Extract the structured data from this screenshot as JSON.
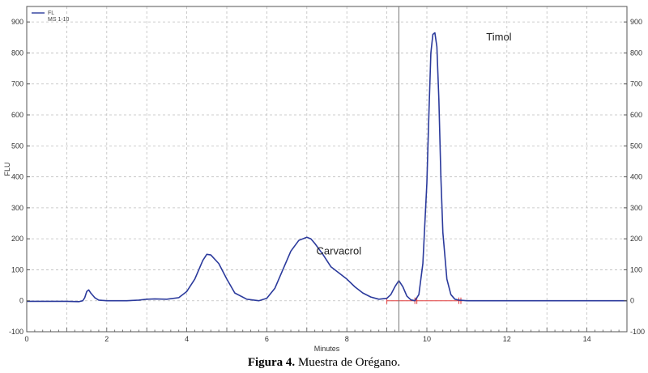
{
  "chart_data": {
    "type": "line",
    "xlabel": "Minutes",
    "ylabel": "FLU",
    "xlim": [
      0,
      15
    ],
    "ylim": [
      -100,
      950
    ],
    "x_ticks": [
      0,
      2,
      4,
      6,
      8,
      10,
      12,
      14
    ],
    "y_ticks": [
      -100,
      0,
      100,
      200,
      300,
      400,
      500,
      600,
      700,
      800,
      900
    ],
    "grid": true,
    "legend": {
      "placement": "top-left",
      "entries": [
        "FL",
        "MS 1-10"
      ]
    },
    "series": [
      {
        "name": "FL",
        "color": "#2b3a9c",
        "x": [
          0,
          0.5,
          1.0,
          1.3,
          1.4,
          1.45,
          1.5,
          1.55,
          1.6,
          1.7,
          1.8,
          2.0,
          2.5,
          2.8,
          3.0,
          3.2,
          3.5,
          3.8,
          4.0,
          4.2,
          4.4,
          4.5,
          4.6,
          4.8,
          5.0,
          5.2,
          5.5,
          5.8,
          6.0,
          6.2,
          6.4,
          6.6,
          6.8,
          7.0,
          7.1,
          7.2,
          7.4,
          7.6,
          7.8,
          8.0,
          8.2,
          8.4,
          8.6,
          8.8,
          9.0,
          9.1,
          9.2,
          9.3,
          9.4,
          9.5,
          9.6,
          9.7,
          9.8,
          9.9,
          10.0,
          10.05,
          10.1,
          10.15,
          10.2,
          10.25,
          10.3,
          10.35,
          10.4,
          10.5,
          10.6,
          10.7,
          10.8,
          11.0,
          11.5,
          12.0,
          13.0,
          14.0,
          15.0
        ],
        "y": [
          -2,
          -2,
          -2,
          -3,
          0,
          10,
          30,
          35,
          25,
          10,
          2,
          0,
          0,
          2,
          5,
          6,
          5,
          10,
          30,
          70,
          130,
          150,
          148,
          120,
          70,
          25,
          5,
          0,
          8,
          40,
          100,
          160,
          195,
          205,
          200,
          185,
          150,
          110,
          90,
          70,
          45,
          25,
          12,
          5,
          8,
          20,
          45,
          65,
          45,
          15,
          3,
          0,
          20,
          120,
          380,
          600,
          800,
          860,
          865,
          820,
          650,
          400,
          220,
          70,
          20,
          5,
          2,
          0,
          0,
          0,
          0,
          0,
          0
        ]
      }
    ],
    "annotations": [
      {
        "text": "Timol",
        "x": 11.8,
        "y": 840
      },
      {
        "text": "Carvacrol",
        "x": 7.8,
        "y": 150
      }
    ],
    "vertical_marker_x": 9.3
  },
  "caption": {
    "label": "Figura 4.",
    "text": " Muestra de Orégano."
  }
}
